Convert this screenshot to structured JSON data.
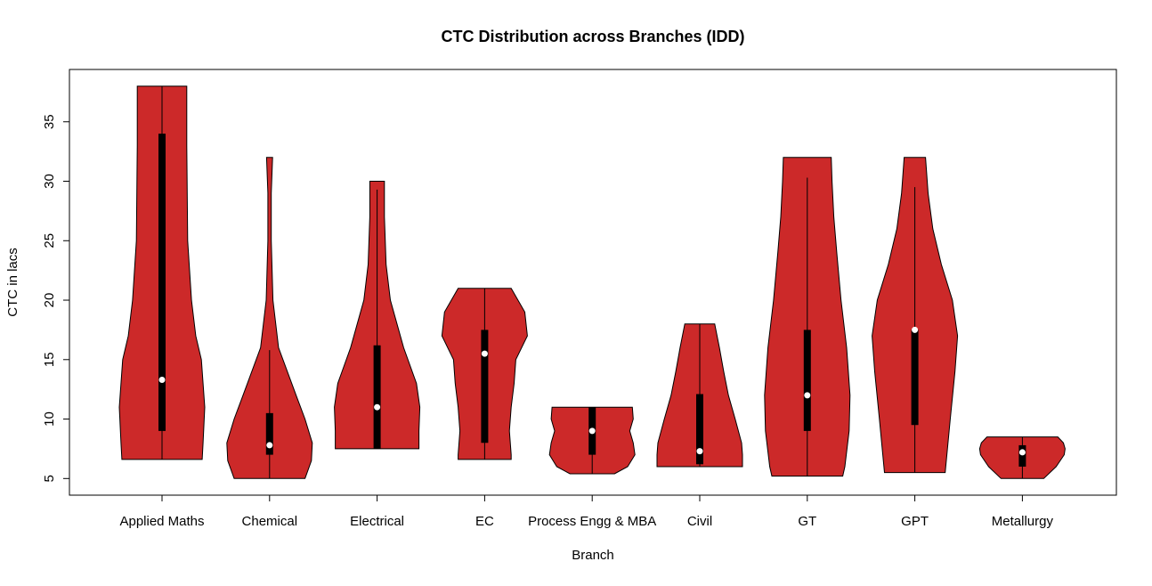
{
  "chart_data": {
    "type": "violin",
    "title": "CTC Distribution across Branches (IDD)",
    "xlabel": "Branch",
    "ylabel": "CTC in lacs",
    "ylim": [
      3.6,
      39.4
    ],
    "yticks": [
      5,
      10,
      15,
      20,
      25,
      30,
      35
    ],
    "grid": false,
    "fill_color": "#CC2929",
    "categories": [
      "Applied Maths",
      "Chemical",
      "Electrical",
      "EC",
      "Process Engg & MBA",
      "Civil",
      "GT",
      "GPT",
      "Metallurgy"
    ],
    "series": [
      {
        "min": 6.6,
        "q1": 9,
        "median": 13.3,
        "q3": 34,
        "whisker_high": 38,
        "max": 38,
        "density_profile": [
          [
            6.6,
            0.94
          ],
          [
            8,
            0.96
          ],
          [
            11,
            1
          ],
          [
            15,
            0.92
          ],
          [
            17,
            0.79
          ],
          [
            20,
            0.69
          ],
          [
            25,
            0.6
          ],
          [
            33,
            0.58
          ],
          [
            38,
            0.58
          ]
        ]
      },
      {
        "min": 5,
        "q1": 7,
        "median": 7.8,
        "q3": 10.5,
        "whisker_high": 15.8,
        "max": 32,
        "density_profile": [
          [
            5,
            0.83
          ],
          [
            6.5,
            0.98
          ],
          [
            8,
            1
          ],
          [
            10,
            0.83
          ],
          [
            12,
            0.62
          ],
          [
            16,
            0.21
          ],
          [
            20,
            0.08
          ],
          [
            25,
            0.04
          ],
          [
            29,
            0.04
          ],
          [
            32,
            0.07
          ]
        ]
      },
      {
        "min": 7.5,
        "q1": 7.5,
        "median": 11,
        "q3": 16.2,
        "whisker_high": 29.3,
        "max": 30,
        "density_profile": [
          [
            7.5,
            0.98
          ],
          [
            9,
            0.98
          ],
          [
            11,
            1
          ],
          [
            13,
            0.92
          ],
          [
            16,
            0.62
          ],
          [
            20,
            0.31
          ],
          [
            23,
            0.21
          ],
          [
            27,
            0.17
          ],
          [
            30,
            0.17
          ]
        ]
      },
      {
        "min": 6.6,
        "q1": 8,
        "median": 15.5,
        "q3": 17.5,
        "whisker_high": 21,
        "max": 21,
        "density_profile": [
          [
            6.6,
            0.62
          ],
          [
            7,
            0.62
          ],
          [
            9,
            0.58
          ],
          [
            11,
            0.62
          ],
          [
            13,
            0.69
          ],
          [
            15,
            0.73
          ],
          [
            17,
            1
          ],
          [
            19,
            0.94
          ],
          [
            21,
            0.62
          ]
        ]
      },
      {
        "min": 5.4,
        "q1": 7,
        "median": 9,
        "q3": 11,
        "whisker_high": 11,
        "max": 11,
        "density_profile": [
          [
            5.4,
            0.52
          ],
          [
            6,
            0.83
          ],
          [
            7,
            1
          ],
          [
            8,
            0.96
          ],
          [
            9,
            0.88
          ],
          [
            10,
            0.96
          ],
          [
            11,
            0.94
          ]
        ]
      },
      {
        "min": 6,
        "q1": 6.2,
        "median": 7.3,
        "q3": 12.1,
        "whisker_high": 18,
        "max": 18,
        "density_profile": [
          [
            6,
            1
          ],
          [
            7,
            1
          ],
          [
            8,
            0.98
          ],
          [
            10,
            0.83
          ],
          [
            12,
            0.67
          ],
          [
            14,
            0.56
          ],
          [
            16,
            0.46
          ],
          [
            18,
            0.35
          ]
        ]
      },
      {
        "min": 5.2,
        "q1": 9,
        "median": 12,
        "q3": 17.5,
        "whisker_high": 30.3,
        "max": 32,
        "density_profile": [
          [
            5.2,
            0.83
          ],
          [
            6,
            0.88
          ],
          [
            9,
            0.98
          ],
          [
            12,
            1
          ],
          [
            16,
            0.92
          ],
          [
            20,
            0.79
          ],
          [
            24,
            0.69
          ],
          [
            27,
            0.62
          ],
          [
            30,
            0.58
          ],
          [
            32,
            0.56
          ]
        ]
      },
      {
        "min": 5.5,
        "q1": 9.5,
        "median": 17.5,
        "q3": 17.5,
        "whisker_high": 29.5,
        "max": 32,
        "density_profile": [
          [
            5.5,
            0.71
          ],
          [
            7,
            0.75
          ],
          [
            10,
            0.83
          ],
          [
            14,
            0.94
          ],
          [
            17,
            1
          ],
          [
            20,
            0.88
          ],
          [
            23,
            0.62
          ],
          [
            26,
            0.42
          ],
          [
            29,
            0.31
          ],
          [
            32,
            0.25
          ]
        ]
      },
      {
        "min": 5,
        "q1": 6,
        "median": 7.2,
        "q3": 7.8,
        "whisker_high": 8.5,
        "max": 8.5,
        "density_profile": [
          [
            5,
            0.5
          ],
          [
            6,
            0.79
          ],
          [
            7,
            0.98
          ],
          [
            7.5,
            1
          ],
          [
            8,
            0.96
          ],
          [
            8.5,
            0.83
          ]
        ]
      }
    ]
  }
}
